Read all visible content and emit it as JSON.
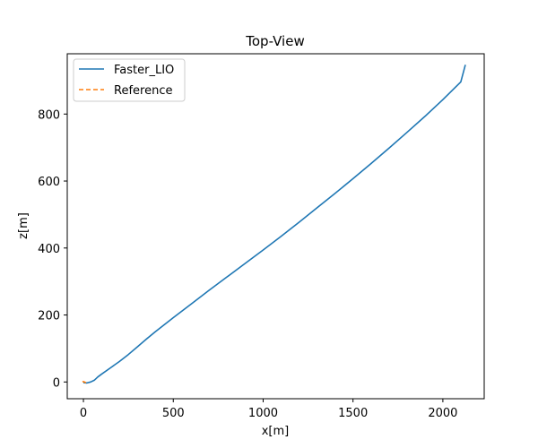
{
  "chart_data": {
    "type": "line",
    "title": "Top-View",
    "xlabel": "x[m]",
    "ylabel": "z[m]",
    "xlim": [
      -90,
      2230
    ],
    "ylim": [
      -50,
      980
    ],
    "xticks": [
      0,
      500,
      1000,
      1500,
      2000
    ],
    "yticks": [
      0,
      200,
      400,
      600,
      800
    ],
    "grid": false,
    "legend_position": "top-left",
    "series": [
      {
        "name": "Faster_LIO",
        "color": "#1f77b4",
        "style": "solid",
        "points": [
          [
            0,
            -2
          ],
          [
            20,
            -3
          ],
          [
            40,
            0
          ],
          [
            60,
            5
          ],
          [
            80,
            15
          ],
          [
            100,
            23
          ],
          [
            150,
            42
          ],
          [
            200,
            61
          ],
          [
            250,
            82
          ],
          [
            300,
            105
          ],
          [
            350,
            128
          ],
          [
            400,
            150
          ],
          [
            500,
            192
          ],
          [
            600,
            233
          ],
          [
            700,
            274
          ],
          [
            800,
            314
          ],
          [
            900,
            354
          ],
          [
            1000,
            394
          ],
          [
            1100,
            435
          ],
          [
            1200,
            477
          ],
          [
            1300,
            520
          ],
          [
            1400,
            563
          ],
          [
            1500,
            607
          ],
          [
            1600,
            652
          ],
          [
            1700,
            698
          ],
          [
            1800,
            745
          ],
          [
            1900,
            793
          ],
          [
            2000,
            843
          ],
          [
            2100,
            896
          ],
          [
            2125,
            947
          ]
        ]
      },
      {
        "name": "Reference",
        "color": "#ff7f0e",
        "style": "dashed",
        "points": [
          [
            -5,
            0
          ],
          [
            0,
            1
          ],
          [
            5,
            0
          ],
          [
            10,
            -1
          ],
          [
            15,
            -2
          ]
        ]
      }
    ]
  }
}
